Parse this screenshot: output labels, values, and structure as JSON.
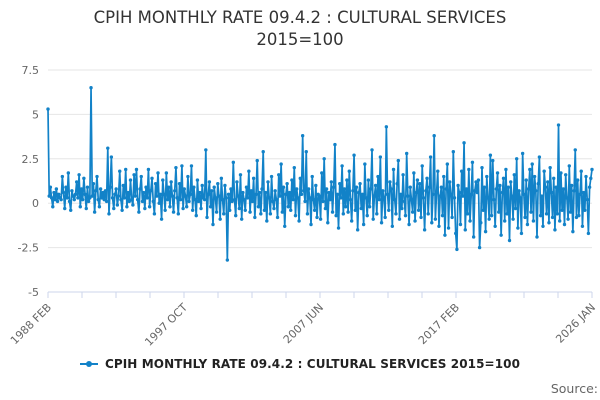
{
  "title": {
    "line1": "CPIH MONTHLY RATE 09.4.2 : CULTURAL SERVICES",
    "line2": "2015=100"
  },
  "legend": {
    "label": "CPIH MONTHLY RATE 09.4.2 : CULTURAL SERVICES 2015=100"
  },
  "source": {
    "label": "Source:"
  },
  "colors": {
    "line": "#1282c8",
    "grid": "#e6e6e6",
    "axis": "#ccd6eb",
    "title_text": "#333333",
    "tick_text": "#666666",
    "legend_text": "#222222",
    "source_text": "#666666",
    "background": "#ffffff"
  },
  "chart_data": {
    "type": "line",
    "title": "CPIH MONTHLY RATE 09.4.2 : CULTURAL SERVICES 2015=100",
    "xlabel": "",
    "ylabel": "",
    "x_start": "1988 FEB",
    "x_end": "2026 JAN",
    "x_tick_labels": [
      "1988 FEB",
      "1997 OCT",
      "2007 JUN",
      "2017 FEB",
      "2026 JAN"
    ],
    "x_tick_count": 17,
    "y_ticks": [
      7.5,
      5,
      2.5,
      0,
      -2.5,
      -5
    ],
    "ylim": [
      -5,
      7.5
    ],
    "grid": true,
    "legend_position": "bottom",
    "marker": "circle",
    "series": [
      {
        "name": "CPIH MONTHLY RATE 09.4.2 : CULTURAL SERVICES 2015=100",
        "color": "#1282c8",
        "values": [
          5.3,
          0.4,
          0.9,
          0.3,
          -0.2,
          0.6,
          0.2,
          0.8,
          0.1,
          0.5,
          0.3,
          0.2,
          1.5,
          0.6,
          -0.3,
          0.9,
          0.3,
          1.7,
          0.1,
          -0.4,
          0.7,
          0.4,
          0.2,
          0.5,
          1.2,
          0.3,
          1.6,
          -0.2,
          0.8,
          0.2,
          1.4,
          0.5,
          -0.3,
          0.9,
          0.1,
          0.3,
          6.5,
          0.4,
          1.1,
          -0.5,
          0.7,
          1.5,
          0.2,
          -0.2,
          0.8,
          0.3,
          0.6,
          0.2,
          0.7,
          0.1,
          3.1,
          -0.6,
          0.9,
          2.6,
          0.3,
          -0.3,
          0.5,
          0.8,
          -0.1,
          0.4,
          1.8,
          0.2,
          -0.4,
          1.0,
          0.3,
          1.9,
          -0.2,
          0.6,
          0.1,
          1.3,
          0.2,
          -0.1,
          1.6,
          0.4,
          1.9,
          0.2,
          -0.5,
          0.8,
          1.5,
          0.1,
          0.6,
          -0.3,
          0.9,
          0.3,
          1.9,
          -0.2,
          0.7,
          1.4,
          0.1,
          -0.6,
          1.1,
          0.4,
          1.7,
          0.0,
          0.5,
          -0.9,
          1.3,
          0.5,
          -0.4,
          1.7,
          0.2,
          0.9,
          -0.2,
          1.2,
          0.4,
          -0.5,
          0.7,
          2.0,
          0.3,
          -0.6,
          1.1,
          0.2,
          2.1,
          -0.3,
          0.8,
          0.4,
          -0.2,
          1.5,
          0.1,
          0.5,
          2.1,
          -0.4,
          0.9,
          0.2,
          -0.7,
          1.3,
          0.1,
          0.6,
          -0.3,
          1.0,
          0.3,
          0.2,
          3.0,
          -0.8,
          0.5,
          1.2,
          -0.2,
          0.7,
          -1.2,
          0.9,
          0.3,
          -0.5,
          1.1,
          0.4,
          -0.9,
          1.4,
          0.2,
          -0.6,
          1.0,
          0.3,
          -3.2,
          0.5,
          -0.4,
          0.8,
          0.1,
          2.3,
          0.2,
          -0.7,
          1.2,
          0.4,
          -0.3,
          1.6,
          -0.9,
          0.6,
          0.2,
          -0.4,
          0.9,
          0.3,
          1.8,
          -0.5,
          0.7,
          0.1,
          1.4,
          -0.8,
          0.5,
          2.4,
          -0.2,
          0.6,
          -0.6,
          0.8,
          2.9,
          -0.4,
          0.6,
          -1.0,
          1.2,
          0.3,
          -0.6,
          1.5,
          0.1,
          -0.3,
          0.7,
          0.2,
          -0.8,
          1.6,
          0.4,
          2.2,
          -0.5,
          0.9,
          -1.3,
          0.5,
          1.1,
          -0.2,
          0.6,
          -0.4,
          1.3,
          0.2,
          2.0,
          -0.7,
          0.8,
          0.3,
          -1.0,
          1.4,
          0.5,
          3.8,
          0.7,
          0.1,
          2.9,
          -0.6,
          0.8,
          0.3,
          -1.2,
          1.5,
          0.2,
          -0.4,
          1.0,
          -0.8,
          0.5,
          0.4,
          -0.9,
          1.7,
          0.1,
          2.5,
          -0.3,
          0.8,
          -1.1,
          0.6,
          0.2,
          1.2,
          -0.5,
          0.9,
          3.3,
          -0.7,
          0.5,
          -1.4,
          1.1,
          0.3,
          2.1,
          -0.6,
          0.8,
          -0.2,
          1.3,
          -0.5,
          1.8,
          0.2,
          -1.0,
          0.7,
          2.7,
          -0.4,
          0.9,
          -1.5,
          0.6,
          1.1,
          -0.3,
          0.5,
          -1.2,
          2.2,
          0.3,
          -0.7,
          1.3,
          -0.2,
          0.8,
          3.0,
          -0.9,
          0.4,
          1.0,
          -0.6,
          1.5,
          0.2,
          2.6,
          -1.1,
          0.7,
          0.3,
          -0.8,
          4.3,
          0.5,
          -0.4,
          1.2,
          0.8,
          -1.3,
          1.9,
          0.2,
          -0.6,
          1.1,
          2.4,
          -0.9,
          0.5,
          -0.3,
          1.6,
          0.1,
          -0.7,
          2.8,
          0.4,
          -1.2,
          0.9,
          0.2,
          -0.5,
          1.7,
          -1.0,
          0.6,
          1.3,
          -0.4,
          1.1,
          -0.8,
          2.1,
          0.3,
          -1.5,
          0.7,
          1.4,
          -0.6,
          0.9,
          2.6,
          -1.1,
          0.5,
          3.8,
          -0.9,
          0.6,
          1.8,
          -1.3,
          0.4,
          0.9,
          -0.7,
          1.5,
          -1.8,
          0.8,
          2.2,
          -1.4,
          1.2,
          0.5,
          -0.8,
          2.9,
          0.3,
          -1.7,
          -2.6,
          1.0,
          0.6,
          -1.2,
          1.8,
          0.4,
          3.4,
          -1.5,
          0.8,
          -0.6,
          1.9,
          -1.0,
          0.5,
          2.3,
          -1.9,
          0.7,
          1.2,
          0.6,
          1.3,
          -2.5,
          -1.1,
          2.0,
          -0.4,
          0.9,
          -1.6,
          1.5,
          0.3,
          -0.9,
          2.7,
          -0.7,
          2.4,
          0.2,
          -1.3,
          0.8,
          1.7,
          -0.5,
          1.0,
          -1.8,
          0.6,
          1.4,
          -1.0,
          1.9,
          -0.6,
          0.9,
          -2.1,
          1.2,
          0.4,
          -0.9,
          1.6,
          -0.3,
          2.5,
          -1.4,
          0.7,
          0.3,
          -1.7,
          2.8,
          0.5,
          -0.8,
          1.3,
          -1.2,
          0.8,
          1.9,
          -0.5,
          2.2,
          -1.0,
          1.5,
          0.7,
          -1.9,
          1.1,
          2.6,
          -0.7,
          0.4,
          -1.3,
          1.8,
          0.9,
          -0.6,
          1.2,
          -1.1,
          2.0,
          0.6,
          -0.8,
          1.4,
          -1.5,
          0.9,
          -0.6,
          4.4,
          -1.0,
          1.7,
          -0.4,
          0.8,
          -1.2,
          1.6,
          0.3,
          -0.9,
          2.1,
          -0.5,
          1.0,
          -1.6,
          0.7,
          3.0,
          -0.8,
          1.3,
          -0.7,
          0.5,
          1.8,
          -1.3,
          0.6,
          -0.4,
          1.5,
          0.2,
          -1.7,
          0.9,
          1.4,
          1.9
        ]
      }
    ]
  }
}
